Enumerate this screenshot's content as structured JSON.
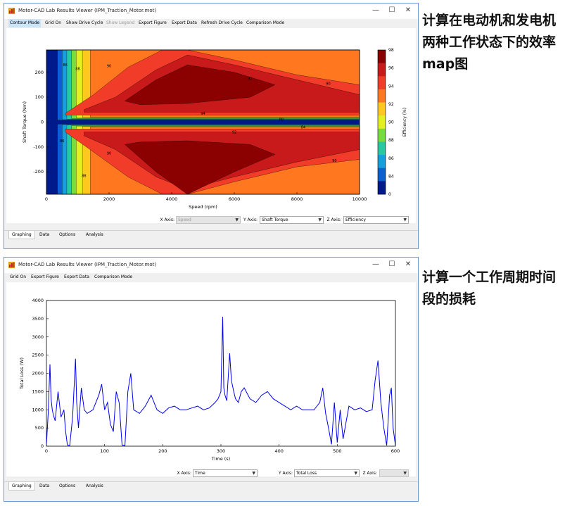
{
  "window1": {
    "title": "Motor-CAD Lab Results Viewer (IPM_Traction_Motor.mot)",
    "menu": [
      "Contour Mode",
      "Grid On",
      "Show Drive Cycle",
      "Show Legend",
      "Export Figure",
      "Export Data",
      "Refresh Drive Cycle",
      "Comparison Mode"
    ],
    "menu_active": "Contour Mode",
    "menu_disabled": "Show Legend",
    "axes": {
      "x_label": "X Axis:",
      "x_value": "Speed",
      "y_label": "Y Axis:",
      "y_value": "Shaft Torque",
      "z_label": "Z Axis:",
      "z_value": "Efficiency"
    },
    "tabs": [
      "Graphing",
      "Data",
      "Options",
      "Analysis"
    ]
  },
  "window2": {
    "title": "Motor-CAD Lab Results Viewer (IPM_Traction_Motor.mot)",
    "menu": [
      "Grid On",
      "Export Figure",
      "Export Data",
      "Comparison Mode"
    ],
    "axes": {
      "x_label": "X Axis:",
      "x_value": "Time",
      "y_label": "Y Axis:",
      "y_value": "Total Loss",
      "z_label": "Z Axis:",
      "z_value": ""
    },
    "tabs": [
      "Graphing",
      "Data",
      "Options",
      "Analysis"
    ]
  },
  "window_buttons": {
    "minimize": "—",
    "maximize": "☐",
    "close": "✕"
  },
  "annotations": {
    "note1": [
      "计算在电动机和发电机",
      "两种工作状态下的效率",
      "map图"
    ],
    "note2": [
      "计算一个工作周期时间",
      "段的损耗"
    ]
  },
  "chart_data": [
    {
      "type": "heatmap",
      "xlabel": "Speed (rpm)",
      "ylabel": "Shaft Torque (Nm)",
      "xlim": [
        0,
        10000
      ],
      "ylim": [
        -290,
        290
      ],
      "xticks": [
        0,
        2000,
        4000,
        6000,
        8000,
        10000
      ],
      "yticks": [
        200,
        100,
        0,
        -100,
        -200
      ],
      "colorbar": {
        "label": "Efficiency (%)",
        "range": [
          0,
          98
        ],
        "ticks": [
          98,
          96,
          94,
          92,
          90,
          88,
          86,
          84,
          0
        ],
        "colors": [
          "#8b0000",
          "#c81a1a",
          "#f03c28",
          "#ff7820",
          "#ffc81e",
          "#e1f01e",
          "#78dc3c",
          "#28c8a0",
          "#14a0dc",
          "#0a5fd2",
          "#001a8c"
        ]
      },
      "contour_labels": [
        {
          "speed": 600,
          "torque": 225,
          "value": "86"
        },
        {
          "speed": 1000,
          "torque": 210,
          "value": "88"
        },
        {
          "speed": 2000,
          "torque": 220,
          "value": "90"
        },
        {
          "speed": 6500,
          "torque": 170,
          "value": "92"
        },
        {
          "speed": 9000,
          "torque": 150,
          "value": "90"
        },
        {
          "speed": 5000,
          "torque": 30,
          "value": "94"
        },
        {
          "speed": 7500,
          "torque": 5,
          "value": "88"
        },
        {
          "speed": 8200,
          "torque": -25,
          "value": "84"
        },
        {
          "speed": 6000,
          "torque": -45,
          "value": "92"
        },
        {
          "speed": 500,
          "torque": -80,
          "value": "86"
        },
        {
          "speed": 1200,
          "torque": -220,
          "value": "88"
        },
        {
          "speed": 2000,
          "torque": -130,
          "value": "90"
        },
        {
          "speed": 9200,
          "torque": -160,
          "value": "90"
        }
      ]
    },
    {
      "type": "line",
      "xlabel": "Time (s)",
      "ylabel": "Total Loss (W)",
      "xlim": [
        0,
        600
      ],
      "ylim": [
        0,
        4000
      ],
      "xticks": [
        0,
        100,
        200,
        300,
        400,
        500,
        600
      ],
      "yticks": [
        0,
        500,
        1000,
        1500,
        2000,
        2500,
        3000,
        3500,
        4000
      ],
      "series": [
        {
          "color": "#0000ee",
          "x": [
            0,
            3,
            6,
            8,
            10,
            12,
            15,
            20,
            25,
            30,
            33,
            36,
            40,
            45,
            50,
            52,
            55,
            60,
            65,
            70,
            80,
            90,
            95,
            100,
            105,
            110,
            115,
            120,
            125,
            130,
            135,
            140,
            145,
            150,
            160,
            170,
            180,
            190,
            200,
            210,
            220,
            230,
            240,
            250,
            260,
            270,
            280,
            290,
            295,
            300,
            303,
            305,
            307,
            310,
            313,
            315,
            318,
            322,
            325,
            330,
            335,
            340,
            350,
            360,
            370,
            380,
            390,
            400,
            410,
            420,
            430,
            440,
            450,
            460,
            470,
            475,
            480,
            485,
            490,
            495,
            500,
            505,
            510,
            520,
            530,
            540,
            550,
            560,
            565,
            570,
            575,
            580,
            585,
            590,
            593,
            596,
            600
          ],
          "y": [
            50,
            900,
            2250,
            1300,
            1000,
            850,
            700,
            1500,
            800,
            1000,
            400,
            30,
            20,
            800,
            2400,
            1200,
            500,
            1600,
            1000,
            900,
            1000,
            1400,
            1700,
            1000,
            1200,
            600,
            400,
            1500,
            1200,
            30,
            20,
            1500,
            2000,
            1000,
            900,
            1100,
            1400,
            1000,
            900,
            1050,
            1100,
            1000,
            1000,
            1050,
            1100,
            1000,
            1050,
            1200,
            1300,
            1500,
            3550,
            1600,
            1400,
            1250,
            2000,
            2550,
            1800,
            1500,
            1300,
            1200,
            1500,
            1600,
            1300,
            1200,
            1400,
            1500,
            1300,
            1200,
            1100,
            1000,
            1100,
            1000,
            1000,
            1000,
            1200,
            1600,
            900,
            500,
            50,
            1200,
            100,
            1000,
            200,
            1100,
            1000,
            1050,
            950,
            1000,
            1800,
            2350,
            1200,
            500,
            20,
            1400,
            1600,
            500,
            20
          ]
        }
      ]
    }
  ]
}
